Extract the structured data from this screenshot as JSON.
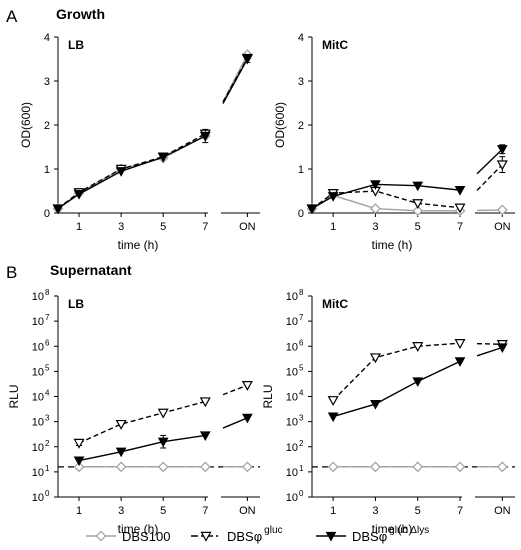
{
  "figure": {
    "panel_a": "A",
    "panel_b": "B",
    "section_a_title": "Growth",
    "section_b_title": "Supernatant"
  },
  "legend": {
    "items": [
      {
        "label": "DBS100",
        "sup": "",
        "marker": "diamond-open",
        "color": "#a0a0a0",
        "dash": "solid"
      },
      {
        "label": "DBSφ",
        "sup": "gluc",
        "marker": "triangle-open",
        "color": "#000000",
        "dash": "dashdot"
      },
      {
        "label": "DBSφ",
        "sup": "gluc Δlys",
        "marker": "triangle-filled",
        "color": "#000000",
        "dash": "solid"
      }
    ]
  },
  "chart_data": [
    {
      "type": "line",
      "subtitle": "LB",
      "xlabel": "time (h)",
      "ylabel": "OD(600)",
      "x_ticks": [
        "1",
        "3",
        "5",
        "7",
        "ON"
      ],
      "y_ticks": [
        "0",
        "1",
        "2",
        "3",
        "4"
      ],
      "xlim": [
        0,
        9.6
      ],
      "ylim": [
        0,
        4
      ],
      "scale": "linear",
      "series": [
        {
          "name": "DBS100",
          "x": [
            0,
            1,
            3,
            5,
            7,
            9
          ],
          "y": [
            0.1,
            0.45,
            1.0,
            1.25,
            1.75,
            3.6
          ],
          "err": [
            0,
            0,
            0,
            0,
            0,
            0
          ]
        },
        {
          "name": "DBSφ gluc",
          "x": [
            0,
            1,
            3,
            5,
            7,
            9
          ],
          "y": [
            0.1,
            0.47,
            1.0,
            1.28,
            1.8,
            3.52
          ],
          "err": [
            0,
            0,
            0,
            0,
            0.05,
            0
          ]
        },
        {
          "name": "DBSφ gluc Δlys",
          "x": [
            0,
            1,
            3,
            5,
            7,
            9
          ],
          "y": [
            0.1,
            0.43,
            0.95,
            1.27,
            1.75,
            3.5
          ],
          "err": [
            0,
            0,
            0,
            0,
            0.15,
            0.08
          ]
        }
      ]
    },
    {
      "type": "line",
      "subtitle": "MitC",
      "xlabel": "time (h)",
      "ylabel": "OD(600)",
      "x_ticks": [
        "1",
        "3",
        "5",
        "7",
        "ON"
      ],
      "y_ticks": [
        "0",
        "1",
        "2",
        "3",
        "4"
      ],
      "xlim": [
        0,
        9.6
      ],
      "ylim": [
        0,
        4
      ],
      "scale": "linear",
      "series": [
        {
          "name": "DBS100",
          "x": [
            0,
            1,
            3,
            5,
            7,
            9
          ],
          "y": [
            0.1,
            0.4,
            0.1,
            0.05,
            0.05,
            0.07
          ],
          "err": [
            0,
            0,
            0,
            0,
            0,
            0
          ]
        },
        {
          "name": "DBSφ gluc",
          "x": [
            0,
            1,
            3,
            5,
            7,
            9
          ],
          "y": [
            0.1,
            0.45,
            0.5,
            0.22,
            0.12,
            1.1
          ],
          "err": [
            0,
            0,
            0,
            0,
            0,
            0.18
          ]
        },
        {
          "name": "DBSφ gluc Δlys",
          "x": [
            0,
            1,
            3,
            5,
            7,
            9
          ],
          "y": [
            0.1,
            0.38,
            0.65,
            0.62,
            0.52,
            1.45
          ],
          "err": [
            0,
            0,
            0,
            0,
            0,
            0.1
          ]
        }
      ]
    },
    {
      "type": "line",
      "subtitle": "LB",
      "xlabel": "time (h)",
      "ylabel": "RLU",
      "x_ticks": [
        "1",
        "3",
        "5",
        "7",
        "ON"
      ],
      "y_ticks_exp": [
        0,
        1,
        2,
        3,
        4,
        5,
        6,
        7,
        8
      ],
      "xlim": [
        0,
        9.6
      ],
      "ylim": [
        0,
        8
      ],
      "scale": "log10",
      "baseline": 1.2,
      "series": [
        {
          "name": "DBS100",
          "x": [
            1,
            3,
            5,
            7,
            9
          ],
          "y": [
            1.2,
            1.2,
            1.2,
            1.2,
            1.2
          ],
          "err": [
            0,
            0,
            0,
            0,
            0
          ]
        },
        {
          "name": "DBSφ gluc",
          "x": [
            1,
            3,
            5,
            7,
            9
          ],
          "y": [
            2.15,
            2.9,
            3.35,
            3.8,
            4.45
          ],
          "err": [
            0.1,
            0,
            0,
            0,
            0
          ]
        },
        {
          "name": "DBSφ gluc Δlys",
          "x": [
            1,
            3,
            5,
            7,
            9
          ],
          "y": [
            1.45,
            1.8,
            2.2,
            2.45,
            3.15
          ],
          "err": [
            0,
            0,
            0.25,
            0,
            0
          ]
        }
      ]
    },
    {
      "type": "line",
      "subtitle": "MitC",
      "xlabel": "time (h)",
      "ylabel": "RLU",
      "x_ticks": [
        "1",
        "3",
        "5",
        "7",
        "ON"
      ],
      "y_ticks_exp": [
        0,
        1,
        2,
        3,
        4,
        5,
        6,
        7,
        8
      ],
      "xlim": [
        0,
        9.6
      ],
      "ylim": [
        0,
        8
      ],
      "scale": "log10",
      "baseline": 1.2,
      "series": [
        {
          "name": "DBS100",
          "x": [
            1,
            3,
            5,
            7,
            9
          ],
          "y": [
            1.2,
            1.2,
            1.2,
            1.2,
            1.2
          ],
          "err": [
            0,
            0,
            0,
            0,
            0
          ]
        },
        {
          "name": "DBSφ gluc",
          "x": [
            1,
            3,
            5,
            7,
            9
          ],
          "y": [
            3.85,
            5.55,
            6.0,
            6.12,
            6.08
          ],
          "err": [
            0,
            0,
            0,
            0,
            0
          ]
        },
        {
          "name": "DBSφ gluc Δlys",
          "x": [
            1,
            3,
            5,
            7,
            9
          ],
          "y": [
            3.2,
            3.7,
            4.6,
            5.4,
            5.95
          ],
          "err": [
            0,
            0,
            0,
            0,
            0
          ]
        }
      ]
    }
  ]
}
